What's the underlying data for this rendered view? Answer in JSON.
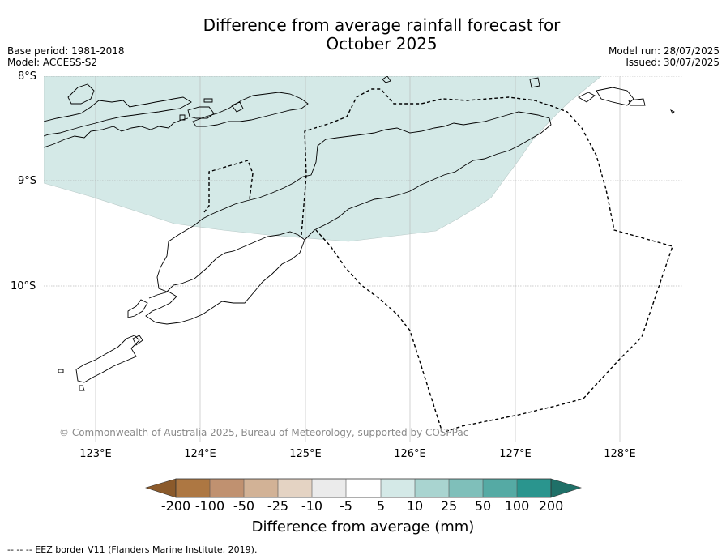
{
  "title": {
    "line1": "Difference from average rainfall forecast for",
    "line2": "October 2025"
  },
  "meta_left": {
    "base_period": "Base period: 1981-2018",
    "model": "Model: ACCESS-S2"
  },
  "meta_right": {
    "model_run": "Model run: 28/07/2025",
    "issued": "Issued: 30/07/2025"
  },
  "map": {
    "lat_labels": [
      "8°S",
      "9°S",
      "10°S"
    ],
    "lon_labels": [
      "123°E",
      "124°E",
      "125°E",
      "126°E",
      "127°E",
      "128°E"
    ],
    "copyright": "© Commonwealth of Australia 2025, Bureau of Meteorology, supported by COSPPac",
    "shaded_anomaly_category": "5 to 10",
    "shade_color": "#d4e9e7",
    "eez_style": "dashed"
  },
  "colorbar": {
    "tick_labels": [
      "-200",
      "-100",
      "-50",
      "-25",
      "-10",
      "-5",
      "5",
      "10",
      "25",
      "50",
      "100",
      "200"
    ],
    "colors": [
      "#8b5a2b",
      "#ad7742",
      "#c09170",
      "#d2b296",
      "#e4d3c3",
      "#ebebeb",
      "#ffffff",
      "#d4e9e7",
      "#a9d4d0",
      "#7fbfba",
      "#55aaa4",
      "#2a958e",
      "#1f7068"
    ],
    "label": "Difference from average (mm)"
  },
  "footnote": "--  --  -- EEZ border V11 (Flanders Marine Institute, 2019)."
}
